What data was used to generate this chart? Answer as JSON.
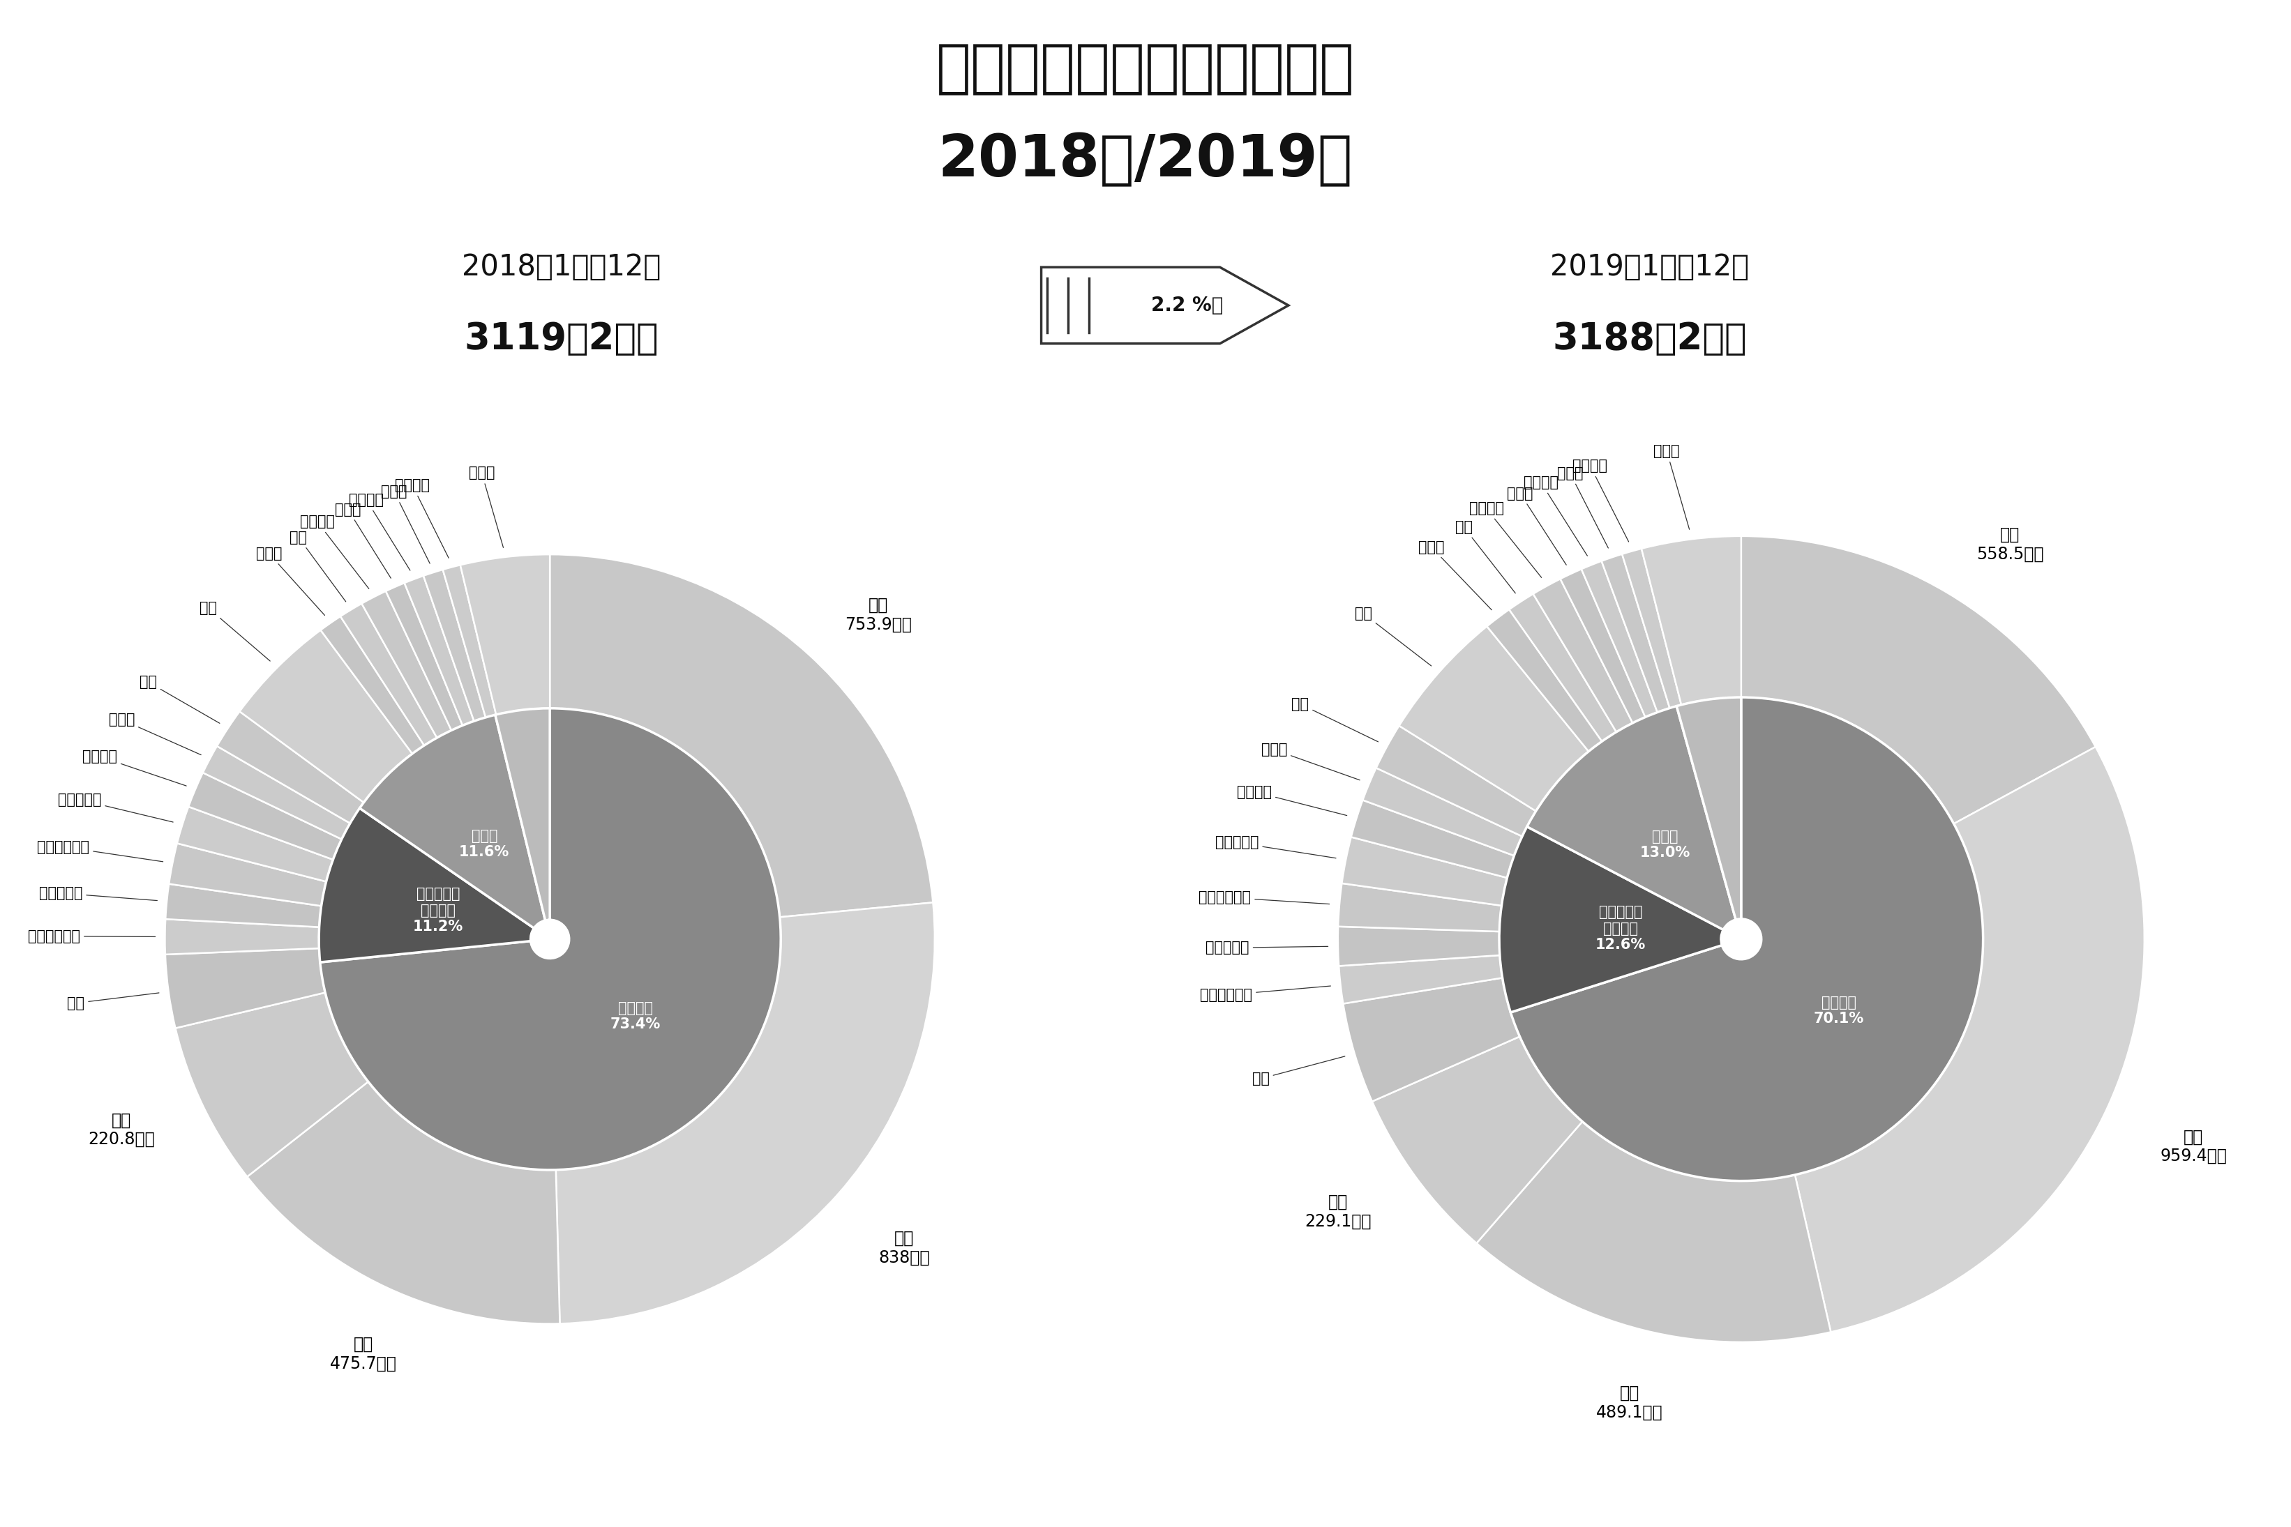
{
  "title_line1": "訪日外客数のシェアの比較",
  "title_line2": "2018年/2019年",
  "left_subtitle": "2018年1月～12月",
  "left_total": "3119万2千人",
  "right_subtitle": "2019年1月～12月",
  "right_total": "3188万2千人",
  "arrow_text": "2.2 %増",
  "bg_color": "#ffffff",
  "chart2018": {
    "outer": [
      {
        "label": "韓国",
        "value": 753.9,
        "named": true,
        "sublabel": "753.9万人",
        "color": "#c8c8c8"
      },
      {
        "label": "中国",
        "value": 838.0,
        "named": true,
        "sublabel": "838万人",
        "color": "#d4d4d4"
      },
      {
        "label": "台湾",
        "value": 475.7,
        "named": true,
        "sublabel": "475.7万人",
        "color": "#c8c8c8"
      },
      {
        "label": "香港",
        "value": 220.8,
        "named": true,
        "sublabel": "220.8万人",
        "color": "#cbcbcb"
      },
      {
        "label": "タイ",
        "value": 99.0,
        "named": false,
        "sublabel": "",
        "color": "#c2c2c2"
      },
      {
        "label": "シンガポール",
        "value": 47.0,
        "named": false,
        "sublabel": "",
        "color": "#cccccc"
      },
      {
        "label": "マレーシア",
        "value": 47.0,
        "named": false,
        "sublabel": "",
        "color": "#c4c4c4"
      },
      {
        "label": "インドネシア",
        "value": 55.0,
        "named": false,
        "sublabel": "",
        "color": "#c8c8c8"
      },
      {
        "label": "フィリピン",
        "value": 51.0,
        "named": false,
        "sublabel": "",
        "color": "#cccccc"
      },
      {
        "label": "ベトナム",
        "value": 49.0,
        "named": false,
        "sublabel": "",
        "color": "#c4c4c4"
      },
      {
        "label": "インド",
        "value": 40.0,
        "named": false,
        "sublabel": "",
        "color": "#cbcbcb"
      },
      {
        "label": "豪州",
        "value": 55.0,
        "named": false,
        "sublabel": "",
        "color": "#c8c8c8"
      },
      {
        "label": "米国",
        "value": 153.0,
        "named": false,
        "sublabel": "",
        "color": "#d0d0d0"
      },
      {
        "label": "カナダ",
        "value": 32.0,
        "named": false,
        "sublabel": "",
        "color": "#c5c5c5"
      },
      {
        "label": "英国",
        "value": 33.0,
        "named": false,
        "sublabel": "",
        "color": "#cbcbcb"
      },
      {
        "label": "フランス",
        "value": 36.0,
        "named": false,
        "sublabel": "",
        "color": "#c8c8c8"
      },
      {
        "label": "ドイツ",
        "value": 27.0,
        "named": false,
        "sublabel": "",
        "color": "#c4c4c4"
      },
      {
        "label": "イタリア",
        "value": 27.0,
        "named": false,
        "sublabel": "",
        "color": "#cbcbcb"
      },
      {
        "label": "ロシア",
        "value": 27.0,
        "named": false,
        "sublabel": "",
        "color": "#c8c8c8"
      },
      {
        "label": "スペイン",
        "value": 24.0,
        "named": false,
        "sublabel": "",
        "color": "#cccccc"
      },
      {
        "label": "その他",
        "value": 120.0,
        "named": false,
        "sublabel": "",
        "color": "#d2d2d2"
      }
    ],
    "inner": [
      {
        "label": "東アジア",
        "pct_label": "73.4%",
        "pct": 73.4,
        "color": "#888888"
      },
      {
        "label": "東南アジア\n＋インド",
        "pct_label": "11.2%",
        "pct": 11.2,
        "color": "#555555"
      },
      {
        "label": "欧米豪",
        "pct_label": "11.6%",
        "pct": 11.6,
        "color": "#999999"
      },
      {
        "label": "",
        "pct_label": "",
        "pct": 3.8,
        "color": "#bbbbbb"
      }
    ]
  },
  "chart2019": {
    "outer": [
      {
        "label": "韓国",
        "value": 558.5,
        "named": true,
        "sublabel": "558.5万人",
        "color": "#c8c8c8"
      },
      {
        "label": "中国",
        "value": 959.4,
        "named": true,
        "sublabel": "959.4万人",
        "color": "#d4d4d4"
      },
      {
        "label": "台湾",
        "value": 489.1,
        "named": true,
        "sublabel": "489.1万人",
        "color": "#c8c8c8"
      },
      {
        "label": "香港",
        "value": 229.1,
        "named": true,
        "sublabel": "229.1万人",
        "color": "#cbcbcb"
      },
      {
        "label": "タイ",
        "value": 132.0,
        "named": false,
        "sublabel": "",
        "color": "#c2c2c2"
      },
      {
        "label": "シンガポール",
        "value": 49.0,
        "named": false,
        "sublabel": "",
        "color": "#cccccc"
      },
      {
        "label": "マレーシア",
        "value": 51.0,
        "named": false,
        "sublabel": "",
        "color": "#c4c4c4"
      },
      {
        "label": "インドネシア",
        "value": 56.0,
        "named": false,
        "sublabel": "",
        "color": "#c8c8c8"
      },
      {
        "label": "フィリピン",
        "value": 61.0,
        "named": false,
        "sublabel": "",
        "color": "#cccccc"
      },
      {
        "label": "ベトナム",
        "value": 50.0,
        "named": false,
        "sublabel": "",
        "color": "#c4c4c4"
      },
      {
        "label": "インド",
        "value": 45.0,
        "named": false,
        "sublabel": "",
        "color": "#cbcbcb"
      },
      {
        "label": "豪州",
        "value": 62.0,
        "named": false,
        "sublabel": "",
        "color": "#c8c8c8"
      },
      {
        "label": "米国",
        "value": 172.0,
        "named": false,
        "sublabel": "",
        "color": "#d0d0d0"
      },
      {
        "label": "カナダ",
        "value": 36.0,
        "named": false,
        "sublabel": "",
        "color": "#c5c5c5"
      },
      {
        "label": "英国",
        "value": 37.0,
        "named": false,
        "sublabel": "",
        "color": "#cbcbcb"
      },
      {
        "label": "フランス",
        "value": 40.0,
        "named": false,
        "sublabel": "",
        "color": "#c8c8c8"
      },
      {
        "label": "ドイツ",
        "value": 30.0,
        "named": false,
        "sublabel": "",
        "color": "#c4c4c4"
      },
      {
        "label": "イタリア",
        "value": 28.0,
        "named": false,
        "sublabel": "",
        "color": "#cbcbcb"
      },
      {
        "label": "ロシア",
        "value": 28.0,
        "named": false,
        "sublabel": "",
        "color": "#c8c8c8"
      },
      {
        "label": "スペイン",
        "value": 26.0,
        "named": false,
        "sublabel": "",
        "color": "#cccccc"
      },
      {
        "label": "その他",
        "value": 130.0,
        "named": false,
        "sublabel": "",
        "color": "#d2d2d2"
      }
    ],
    "inner": [
      {
        "label": "東アジア",
        "pct_label": "70.1%",
        "pct": 70.1,
        "color": "#888888"
      },
      {
        "label": "東南アジア\n＋インド",
        "pct_label": "12.6%",
        "pct": 12.6,
        "color": "#555555"
      },
      {
        "label": "欧米豪",
        "pct_label": "13.0%",
        "pct": 13.0,
        "color": "#999999"
      },
      {
        "label": "",
        "pct_label": "",
        "pct": 4.3,
        "color": "#bbbbbb"
      }
    ]
  }
}
